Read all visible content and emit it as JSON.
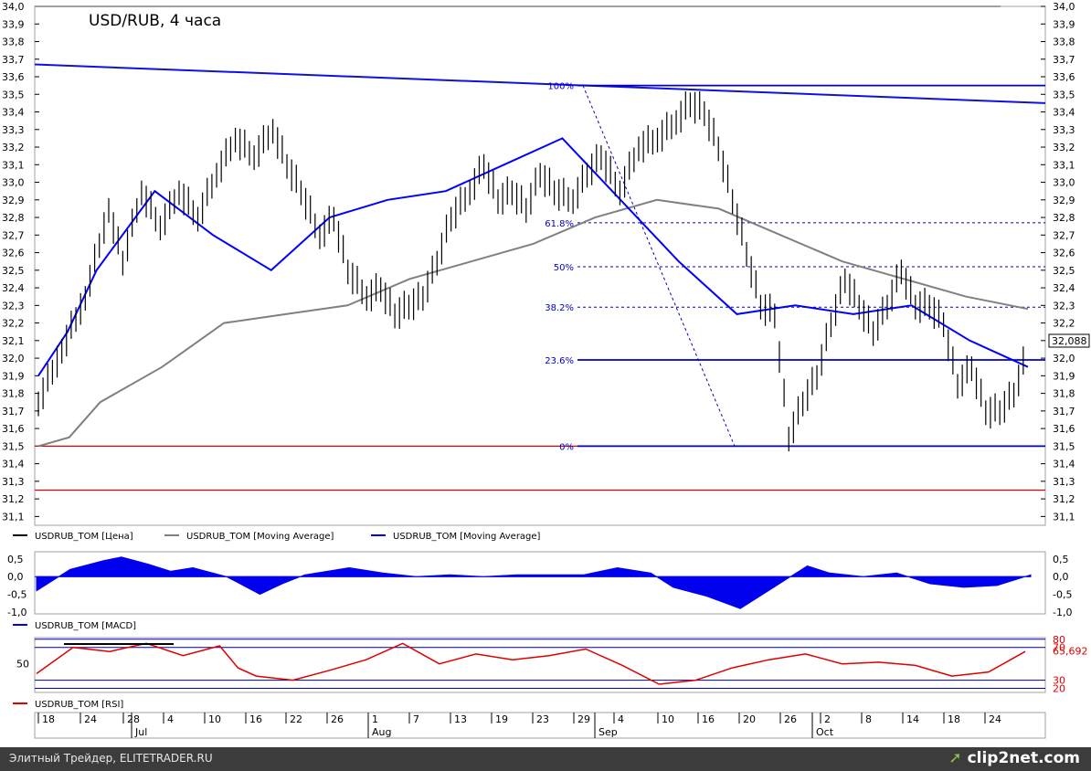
{
  "chart_data": [
    {
      "type": "candlestick",
      "title": "USD/RUB, 4 часа",
      "y_ticks": [
        "34,0",
        "33,9",
        "33,8",
        "33,7",
        "33,6",
        "33,5",
        "33,4",
        "33,3",
        "33,2",
        "33,1",
        "33,0",
        "32,9",
        "32,8",
        "32,7",
        "32,6",
        "32,5",
        "32,4",
        "32,3",
        "32,2",
        "32,1",
        "32,0",
        "31,9",
        "31,8",
        "31,7",
        "31,6",
        "31,5",
        "31,4",
        "31,3",
        "31,2",
        "31,1"
      ],
      "ylim": [
        31.05,
        34.0
      ],
      "last_price_label": "32,088",
      "last_price": 32.088,
      "price_series": {
        "name": "USDRUB_TOM [Цена]",
        "color": "#000000",
        "points": [
          [
            0,
            31.75
          ],
          [
            5,
            32.05
          ],
          [
            10,
            32.35
          ],
          [
            15,
            32.85
          ],
          [
            18,
            32.55
          ],
          [
            22,
            32.95
          ],
          [
            26,
            32.75
          ],
          [
            30,
            32.95
          ],
          [
            34,
            32.8
          ],
          [
            38,
            33.05
          ],
          [
            42,
            33.25
          ],
          [
            46,
            33.15
          ],
          [
            50,
            33.3
          ],
          [
            53,
            33.1
          ],
          [
            56,
            32.95
          ],
          [
            60,
            32.7
          ],
          [
            63,
            32.8
          ],
          [
            66,
            32.5
          ],
          [
            70,
            32.35
          ],
          [
            73,
            32.4
          ],
          [
            76,
            32.25
          ],
          [
            79,
            32.3
          ],
          [
            82,
            32.35
          ],
          [
            85,
            32.55
          ],
          [
            88,
            32.8
          ],
          [
            92,
            32.95
          ],
          [
            95,
            33.1
          ],
          [
            98,
            32.9
          ],
          [
            101,
            32.95
          ],
          [
            104,
            32.85
          ],
          [
            107,
            33.05
          ],
          [
            110,
            32.95
          ],
          [
            114,
            32.9
          ],
          [
            117,
            33.05
          ],
          [
            120,
            33.15
          ],
          [
            124,
            32.95
          ],
          [
            128,
            33.2
          ],
          [
            132,
            33.25
          ],
          [
            136,
            33.35
          ],
          [
            139,
            33.45
          ],
          [
            142,
            33.4
          ],
          [
            145,
            33.2
          ],
          [
            148,
            32.9
          ],
          [
            151,
            32.6
          ],
          [
            154,
            32.3
          ],
          [
            157,
            32.25
          ],
          [
            160,
            31.55
          ],
          [
            163,
            31.75
          ],
          [
            166,
            31.9
          ],
          [
            169,
            32.2
          ],
          [
            172,
            32.45
          ],
          [
            175,
            32.3
          ],
          [
            178,
            32.15
          ],
          [
            181,
            32.3
          ],
          [
            184,
            32.5
          ],
          [
            187,
            32.3
          ],
          [
            190,
            32.3
          ],
          [
            193,
            32.2
          ],
          [
            196,
            31.85
          ],
          [
            199,
            31.95
          ],
          [
            202,
            31.7
          ],
          [
            205,
            31.7
          ],
          [
            208,
            31.8
          ],
          [
            211,
            32.05
          ]
        ]
      },
      "ma_long": {
        "name": "USDRUB_TOM [Moving Average]",
        "color": "#808080",
        "points": [
          [
            0,
            31.5
          ],
          [
            5,
            31.55
          ],
          [
            10,
            31.75
          ],
          [
            20,
            31.95
          ],
          [
            30,
            32.2
          ],
          [
            40,
            32.25
          ],
          [
            50,
            32.3
          ],
          [
            60,
            32.45
          ],
          [
            70,
            32.55
          ],
          [
            80,
            32.65
          ],
          [
            90,
            32.8
          ],
          [
            100,
            32.9
          ],
          [
            110,
            32.85
          ],
          [
            120,
            32.7
          ],
          [
            130,
            32.55
          ],
          [
            140,
            32.45
          ],
          [
            150,
            32.35
          ],
          [
            160,
            32.28
          ]
        ]
      },
      "ma_short": {
        "name": "USDRUB_TOM [Moving Average]",
        "color": "#0000ff",
        "points": [
          [
            0,
            31.9
          ],
          [
            5,
            32.15
          ],
          [
            10,
            32.5
          ],
          [
            20,
            32.95
          ],
          [
            30,
            32.7
          ],
          [
            40,
            32.5
          ],
          [
            50,
            32.8
          ],
          [
            60,
            32.9
          ],
          [
            70,
            32.95
          ],
          [
            80,
            33.1
          ],
          [
            90,
            33.25
          ],
          [
            100,
            32.9
          ],
          [
            110,
            32.55
          ],
          [
            120,
            32.25
          ],
          [
            130,
            32.3
          ],
          [
            140,
            32.25
          ],
          [
            150,
            32.3
          ],
          [
            160,
            32.1
          ],
          [
            170,
            31.95
          ]
        ]
      },
      "trendline": {
        "from": 33.67,
        "to": 33.45
      },
      "fibonacci": [
        {
          "label": "100%",
          "value": 33.55
        },
        {
          "label": "61.8%",
          "value": 32.77
        },
        {
          "label": "50%",
          "value": 32.52
        },
        {
          "label": "38.2%",
          "value": 32.29
        },
        {
          "label": "23.6%",
          "value": 31.99
        },
        {
          "label": "0%",
          "value": 31.5
        }
      ],
      "support_lines": [
        {
          "value": 31.5,
          "color": "#e00000"
        },
        {
          "value": 31.25,
          "color": "#e00000"
        }
      ],
      "top_line": {
        "value": 34.0,
        "color": "#808080"
      },
      "legend": [
        "USDRUB_TOM [Цена]",
        "USDRUB_TOM [Moving Average]",
        "USDRUB_TOM [Moving Average]"
      ]
    },
    {
      "type": "area",
      "series_name": "USDRUB_TOM [MACD]",
      "y_ticks": [
        "0,5",
        "0,0",
        "-0,5",
        "-1,0"
      ],
      "ylim": [
        -1.05,
        0.7
      ],
      "color": "#0000ee",
      "points": [
        [
          0,
          -0.4
        ],
        [
          15,
          0.2
        ],
        [
          30,
          0.45
        ],
        [
          38,
          0.55
        ],
        [
          50,
          0.35
        ],
        [
          60,
          0.15
        ],
        [
          70,
          0.25
        ],
        [
          85,
          0.0
        ],
        [
          100,
          -0.5
        ],
        [
          110,
          -0.2
        ],
        [
          120,
          0.05
        ],
        [
          140,
          0.25
        ],
        [
          155,
          0.1
        ],
        [
          170,
          0.0
        ],
        [
          185,
          0.05
        ],
        [
          200,
          0.0
        ],
        [
          215,
          0.05
        ],
        [
          230,
          0.05
        ],
        [
          245,
          0.05
        ],
        [
          260,
          0.25
        ],
        [
          275,
          0.1
        ],
        [
          285,
          -0.3
        ],
        [
          300,
          -0.55
        ],
        [
          315,
          -0.9
        ],
        [
          330,
          -0.3
        ],
        [
          345,
          0.3
        ],
        [
          355,
          0.1
        ],
        [
          370,
          0.0
        ],
        [
          385,
          0.1
        ],
        [
          400,
          -0.2
        ],
        [
          415,
          -0.3
        ],
        [
          430,
          -0.25
        ],
        [
          445,
          0.05
        ]
      ]
    },
    {
      "type": "line",
      "series_name": "USDRUB_TOM [RSI]",
      "y_ticks": [
        "50"
      ],
      "right_labels": [
        "80",
        "70",
        "65,692",
        "30",
        "20"
      ],
      "last_value": 65.692,
      "ylim": [
        15,
        82
      ],
      "levels": [
        80,
        70,
        30,
        20
      ],
      "color": "#e00000",
      "points": [
        [
          0,
          38
        ],
        [
          10,
          70
        ],
        [
          20,
          65
        ],
        [
          30,
          75
        ],
        [
          40,
          60
        ],
        [
          50,
          72
        ],
        [
          55,
          45
        ],
        [
          60,
          35
        ],
        [
          70,
          30
        ],
        [
          80,
          42
        ],
        [
          90,
          55
        ],
        [
          100,
          75
        ],
        [
          110,
          50
        ],
        [
          120,
          62
        ],
        [
          130,
          55
        ],
        [
          140,
          60
        ],
        [
          150,
          68
        ],
        [
          160,
          48
        ],
        [
          170,
          25
        ],
        [
          180,
          30
        ],
        [
          190,
          45
        ],
        [
          200,
          55
        ],
        [
          210,
          62
        ],
        [
          220,
          50
        ],
        [
          230,
          52
        ],
        [
          240,
          48
        ],
        [
          250,
          35
        ],
        [
          260,
          40
        ],
        [
          270,
          65
        ]
      ]
    }
  ],
  "x_axis": {
    "day_labels": [
      "18",
      "24",
      "28",
      "4",
      "10",
      "16",
      "22",
      "26",
      "1",
      "7",
      "13",
      "19",
      "23",
      "29",
      "4",
      "10",
      "16",
      "20",
      "26",
      "2",
      "8",
      "14",
      "18",
      "24"
    ],
    "month_labels": [
      "Jul",
      "Aug",
      "Sep",
      "Oct"
    ]
  },
  "footer": {
    "left_text": "Элитный Трейдер, ELITETRADER.RU",
    "right_text": "clip2net.com",
    "logo_icon": "clip2net-icon"
  }
}
